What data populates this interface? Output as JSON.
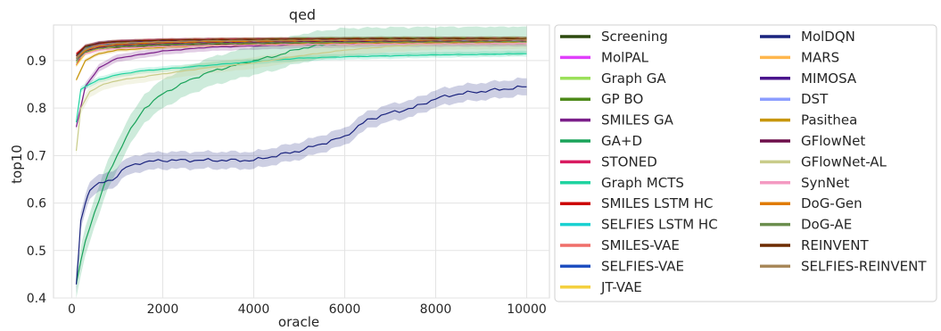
{
  "chart_data": {
    "type": "line",
    "title": "qed",
    "xlabel": "oracle",
    "ylabel": "top10",
    "xlim": [
      -400,
      10500
    ],
    "ylim": [
      0.4,
      0.975
    ],
    "xticks": [
      0,
      2000,
      4000,
      6000,
      8000,
      10000
    ],
    "yticks": [
      0.4,
      0.5,
      0.6,
      0.7,
      0.8,
      0.9
    ],
    "grid": true,
    "legend": {
      "placement": "outside-right",
      "columns": 2
    },
    "series": [
      {
        "name": "Screening",
        "color": "#2d4a0e",
        "x": [
          100,
          300,
          600,
          1000,
          2000,
          3000,
          5000,
          7000,
          10000
        ],
        "y": [
          0.905,
          0.918,
          0.925,
          0.928,
          0.932,
          0.934,
          0.936,
          0.937,
          0.938
        ]
      },
      {
        "name": "MolPAL",
        "color": "#e040fb",
        "x": [
          100,
          300,
          600,
          1000,
          2000,
          3000,
          5000,
          7000,
          10000
        ],
        "y": [
          0.91,
          0.925,
          0.932,
          0.936,
          0.939,
          0.94,
          0.941,
          0.942,
          0.942
        ]
      },
      {
        "name": "Graph GA",
        "color": "#9be05a",
        "x": [
          100,
          300,
          600,
          1000,
          2000,
          3000,
          5000,
          7000,
          10000
        ],
        "y": [
          0.895,
          0.925,
          0.935,
          0.938,
          0.941,
          0.943,
          0.945,
          0.946,
          0.947
        ]
      },
      {
        "name": "GP BO",
        "color": "#4e8a1a",
        "x": [
          100,
          300,
          600,
          1000,
          2000,
          3000,
          5000,
          7000,
          10000
        ],
        "y": [
          0.905,
          0.928,
          0.936,
          0.939,
          0.942,
          0.944,
          0.946,
          0.947,
          0.947
        ]
      },
      {
        "name": "SMILES GA",
        "color": "#7b1f8a",
        "x": [
          100,
          300,
          600,
          1000,
          2000,
          3000,
          5000,
          7000,
          10000
        ],
        "y": [
          0.76,
          0.845,
          0.885,
          0.905,
          0.92,
          0.928,
          0.934,
          0.937,
          0.938
        ]
      },
      {
        "name": "GA+D",
        "color": "#1aa35a",
        "x": [
          100,
          300,
          500,
          800,
          1200,
          1600,
          2000,
          2500,
          3000,
          3500,
          4000,
          4500,
          5000,
          5500,
          6000,
          7000,
          8000,
          10000
        ],
        "y": [
          0.43,
          0.52,
          0.58,
          0.66,
          0.74,
          0.8,
          0.83,
          0.855,
          0.875,
          0.888,
          0.9,
          0.91,
          0.925,
          0.933,
          0.938,
          0.94,
          0.941,
          0.942
        ]
      },
      {
        "name": "STONED",
        "color": "#d81b60",
        "x": [
          100,
          300,
          600,
          1000,
          2000,
          3000,
          5000,
          7000,
          10000
        ],
        "y": [
          0.89,
          0.925,
          0.935,
          0.94,
          0.943,
          0.944,
          0.945,
          0.945,
          0.946
        ]
      },
      {
        "name": "Graph MCTS",
        "color": "#1fd3a0",
        "x": [
          100,
          200,
          400,
          600,
          1000,
          1500,
          2000,
          3000,
          4000,
          5000,
          6000,
          7000,
          8000,
          9000,
          10000
        ],
        "y": [
          0.77,
          0.84,
          0.85,
          0.86,
          0.87,
          0.878,
          0.882,
          0.89,
          0.898,
          0.905,
          0.908,
          0.91,
          0.912,
          0.913,
          0.915
        ]
      },
      {
        "name": "SMILES LSTM HC",
        "color": "#cc0000",
        "x": [
          100,
          300,
          600,
          1000,
          2000,
          3000,
          5000,
          7000,
          10000
        ],
        "y": [
          0.915,
          0.93,
          0.937,
          0.94,
          0.943,
          0.944,
          0.945,
          0.946,
          0.946
        ]
      },
      {
        "name": "SELFIES LSTM HC",
        "color": "#1ad1d1",
        "x": [
          100,
          300,
          600,
          1000,
          2000,
          3000,
          5000,
          7000,
          10000
        ],
        "y": [
          0.905,
          0.922,
          0.93,
          0.933,
          0.936,
          0.938,
          0.94,
          0.941,
          0.941
        ]
      },
      {
        "name": "SMILES-VAE",
        "color": "#ef6f6a",
        "x": [
          100,
          300,
          600,
          1000,
          2000,
          3000,
          5000,
          7000,
          10000
        ],
        "y": [
          0.91,
          0.926,
          0.933,
          0.937,
          0.94,
          0.941,
          0.942,
          0.943,
          0.943
        ]
      },
      {
        "name": "SELFIES-VAE",
        "color": "#1f4fc0",
        "x": [
          100,
          300,
          600,
          1000,
          2000,
          3000,
          5000,
          7000,
          10000
        ],
        "y": [
          0.91,
          0.926,
          0.933,
          0.936,
          0.939,
          0.94,
          0.941,
          0.942,
          0.942
        ]
      },
      {
        "name": "JT-VAE",
        "color": "#f4d03f",
        "x": [
          100,
          300,
          600,
          1000,
          2000,
          3000,
          5000,
          7000,
          10000
        ],
        "y": [
          0.89,
          0.915,
          0.925,
          0.93,
          0.935,
          0.937,
          0.939,
          0.94,
          0.94
        ]
      },
      {
        "name": "MolDQN",
        "color": "#1a237e",
        "x": [
          100,
          200,
          300,
          400,
          600,
          900,
          1200,
          1500,
          2000,
          2500,
          3000,
          3500,
          4000,
          4500,
          5000,
          5500,
          6000,
          6500,
          7000,
          7500,
          8000,
          8500,
          9000,
          9500,
          10000
        ],
        "y": [
          0.43,
          0.56,
          0.6,
          0.63,
          0.64,
          0.65,
          0.675,
          0.685,
          0.69,
          0.69,
          0.69,
          0.69,
          0.69,
          0.7,
          0.71,
          0.725,
          0.74,
          0.775,
          0.79,
          0.8,
          0.82,
          0.83,
          0.835,
          0.84,
          0.845
        ]
      },
      {
        "name": "MARS",
        "color": "#ffb74d",
        "x": [
          100,
          300,
          600,
          1000,
          2000,
          3000,
          5000,
          7000,
          10000
        ],
        "y": [
          0.905,
          0.92,
          0.928,
          0.932,
          0.936,
          0.938,
          0.94,
          0.941,
          0.942
        ]
      },
      {
        "name": "MIMOSA",
        "color": "#4a148c",
        "x": [
          100,
          300,
          600,
          1000,
          2000,
          3000,
          5000,
          7000,
          10000
        ],
        "y": [
          0.91,
          0.93,
          0.937,
          0.94,
          0.942,
          0.943,
          0.944,
          0.945,
          0.945
        ]
      },
      {
        "name": "DST",
        "color": "#8c9eff",
        "x": [
          100,
          300,
          600,
          1000,
          2000,
          3000,
          5000,
          7000,
          10000
        ],
        "y": [
          0.9,
          0.92,
          0.928,
          0.932,
          0.936,
          0.938,
          0.94,
          0.941,
          0.941
        ]
      },
      {
        "name": "Pasithea",
        "color": "#c8960c",
        "x": [
          100,
          300,
          600,
          1000,
          2000,
          3000,
          5000,
          7000,
          10000
        ],
        "y": [
          0.86,
          0.9,
          0.915,
          0.922,
          0.928,
          0.932,
          0.935,
          0.937,
          0.938
        ]
      },
      {
        "name": "GFlowNet",
        "color": "#6d0f4a",
        "x": [
          100,
          300,
          600,
          1000,
          2000,
          3000,
          5000,
          7000,
          10000
        ],
        "y": [
          0.9,
          0.92,
          0.928,
          0.932,
          0.936,
          0.938,
          0.94,
          0.941,
          0.941
        ]
      },
      {
        "name": "GFlowNet-AL",
        "color": "#c9cc8a",
        "x": [
          100,
          200,
          400,
          700,
          1000,
          1500,
          2000,
          3000,
          4000,
          5000,
          6000,
          7000,
          8000,
          10000
        ],
        "y": [
          0.71,
          0.8,
          0.835,
          0.85,
          0.858,
          0.865,
          0.872,
          0.885,
          0.895,
          0.91,
          0.922,
          0.93,
          0.935,
          0.937
        ]
      },
      {
        "name": "SynNet",
        "color": "#f49ac2",
        "x": [
          100,
          300,
          600,
          1000,
          2000,
          3000,
          5000,
          7000,
          10000
        ],
        "y": [
          0.9,
          0.915,
          0.922,
          0.926,
          0.93,
          0.932,
          0.934,
          0.935,
          0.936
        ]
      },
      {
        "name": "DoG-Gen",
        "color": "#e07b00",
        "x": [
          100,
          300,
          600,
          1000,
          2000,
          3000,
          5000,
          7000,
          10000
        ],
        "y": [
          0.905,
          0.922,
          0.93,
          0.934,
          0.938,
          0.94,
          0.942,
          0.943,
          0.944
        ]
      },
      {
        "name": "DoG-AE",
        "color": "#6b8e4e",
        "x": [
          100,
          300,
          600,
          1000,
          2000,
          3000,
          5000,
          7000,
          10000
        ],
        "y": [
          0.9,
          0.918,
          0.926,
          0.93,
          0.934,
          0.936,
          0.938,
          0.939,
          0.94
        ]
      },
      {
        "name": "REINVENT",
        "color": "#6d2c00",
        "x": [
          100,
          300,
          600,
          1000,
          2000,
          3000,
          5000,
          7000,
          10000
        ],
        "y": [
          0.91,
          0.93,
          0.937,
          0.94,
          0.943,
          0.944,
          0.945,
          0.946,
          0.946
        ]
      },
      {
        "name": "SELFIES-REINVENT",
        "color": "#a8885a",
        "x": [
          100,
          300,
          600,
          1000,
          2000,
          3000,
          5000,
          7000,
          10000
        ],
        "y": [
          0.905,
          0.925,
          0.933,
          0.937,
          0.94,
          0.942,
          0.943,
          0.944,
          0.944
        ]
      }
    ]
  }
}
